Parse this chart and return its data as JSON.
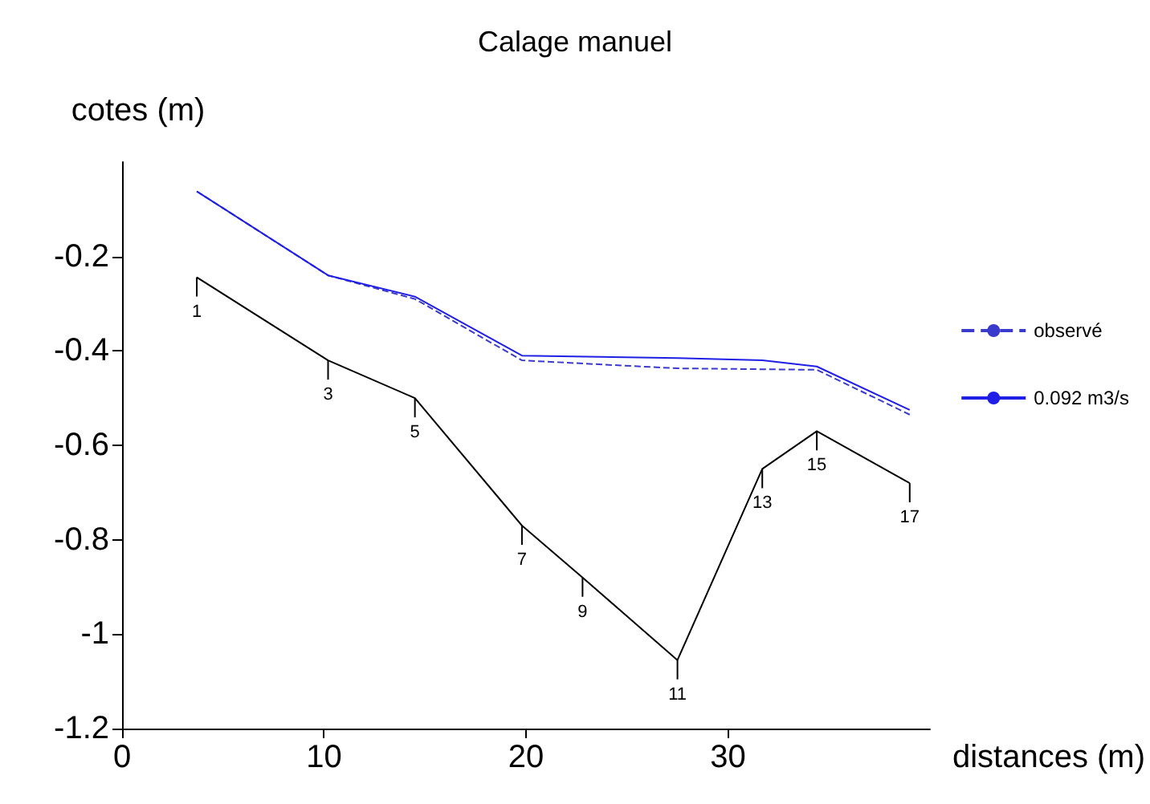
{
  "chart_data": {
    "type": "line",
    "title": "Calage manuel",
    "xlabel": "distances (m)",
    "ylabel": "cotes (m)",
    "xlim": [
      0,
      40
    ],
    "xticks": [
      0,
      10,
      20,
      30
    ],
    "ylim": [
      -1.2,
      0
    ],
    "yticks": [
      -0.2,
      -0.4,
      -0.6,
      -0.8,
      -1,
      -1.2
    ],
    "grid": false,
    "legend": "right",
    "series": [
      {
        "color": "#000000",
        "x": [
          3.7,
          10.2,
          14.5,
          19.8,
          22.8,
          27.5,
          31.7,
          34.4,
          39.0
        ],
        "values": [
          -0.244,
          -0.42,
          -0.5,
          -0.77,
          -0.88,
          -1.055,
          -0.65,
          -0.57,
          -0.68
        ]
      },
      {
        "name": "observé",
        "color": "#3a3acc",
        "line_style": "dashed",
        "x": [
          3.7,
          10.2,
          14.5,
          19.8,
          27.5,
          34.4,
          39.0
        ],
        "values": [
          -0.062,
          -0.24,
          -0.29,
          -0.42,
          -0.437,
          -0.44,
          -0.535
        ]
      },
      {
        "name": "0.092 m3/s",
        "color": "#1f1fe6",
        "line_style": "solid",
        "x": [
          3.7,
          10.2,
          14.5,
          19.8,
          27.5,
          31.7,
          34.4,
          39.0
        ],
        "values": [
          -0.062,
          -0.24,
          -0.285,
          -0.41,
          -0.415,
          -0.42,
          -0.433,
          -0.525
        ]
      }
    ],
    "annotations": [
      {
        "text": "1",
        "x": 3.7,
        "y": -0.244
      },
      {
        "text": "3",
        "x": 10.2,
        "y": -0.42
      },
      {
        "text": "5",
        "x": 14.5,
        "y": -0.5
      },
      {
        "text": "7",
        "x": 19.8,
        "y": -0.77
      },
      {
        "text": "9",
        "x": 22.8,
        "y": -0.88
      },
      {
        "text": "11",
        "x": 27.5,
        "y": -1.055
      },
      {
        "text": "13",
        "x": 31.7,
        "y": -0.65
      },
      {
        "text": "15",
        "x": 34.4,
        "y": -0.57
      },
      {
        "text": "17",
        "x": 39.0,
        "y": -0.68
      }
    ]
  }
}
